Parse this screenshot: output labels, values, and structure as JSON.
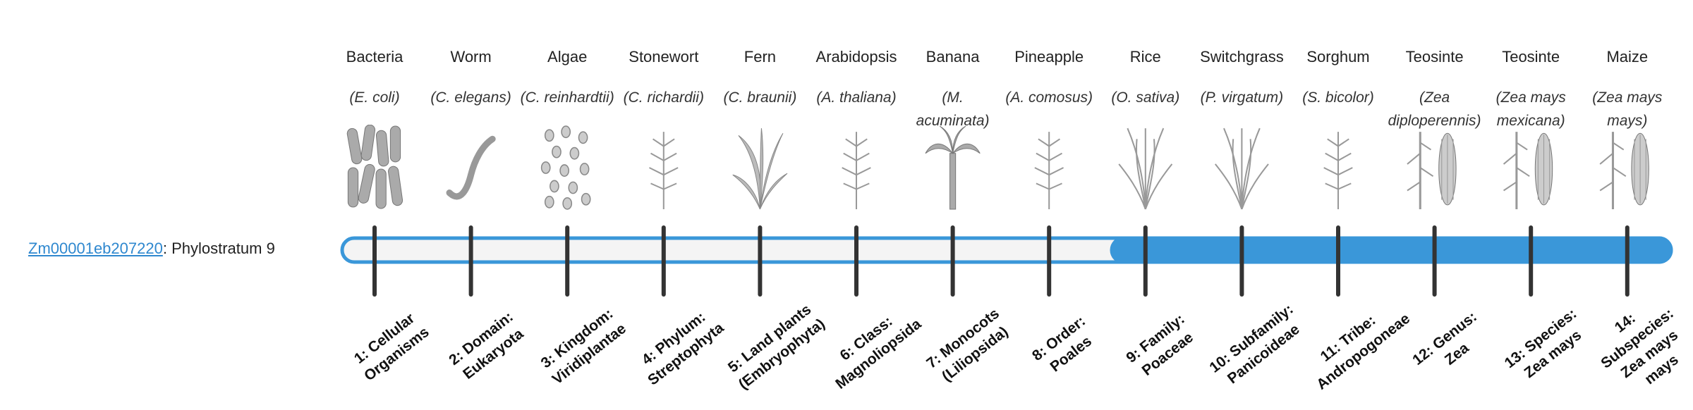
{
  "gene": "Zm00001eb207220",
  "separator": ":",
  "label": "Phylostratum",
  "phylostratum": 9,
  "columns": [
    {
      "organism": "Bacteria",
      "species": "(E. coli)",
      "stratum": "1: Cellular Organisms"
    },
    {
      "organism": "Worm",
      "species": "(C. elegans)",
      "stratum": "2: Domain: Eukaryota"
    },
    {
      "organism": "Algae",
      "species": "(C. reinhardtii)",
      "stratum": "3: Kingdom: Viridiplantae"
    },
    {
      "organism": "Stonewort",
      "species": "(C. richardii)",
      "stratum": "4: Phylum: Streptophyta"
    },
    {
      "organism": "Fern",
      "species": "(C. braunii)",
      "stratum": "5: Land plants (Embryophyta)"
    },
    {
      "organism": "Arabidopsis",
      "species": "(A. thaliana)",
      "stratum": "6: Class: Magnoliopsida"
    },
    {
      "organism": "Banana",
      "species": "(M. acuminata)",
      "stratum": "7: Monocots (Liliopsida)"
    },
    {
      "organism": "Pineapple",
      "species": "(A. comosus)",
      "stratum": "8: Order: Poales"
    },
    {
      "organism": "Rice",
      "species": "(O. sativa)",
      "stratum": "9: Family: Poaceae"
    },
    {
      "organism": "Switchgrass",
      "species": "(P. virgatum)",
      "stratum": "10: Subfamily: Panicoideae"
    },
    {
      "organism": "Sorghum",
      "species": "(S. bicolor)",
      "stratum": "11: Tribe: Andropogoneae"
    },
    {
      "organism": "Teosinte",
      "species": "(Zea diploperennis)",
      "stratum": "12: Genus: Zea"
    },
    {
      "organism": "Teosinte",
      "species": "(Zea mays mexicana)",
      "stratum": "13: Species: Zea mays"
    },
    {
      "organism": "Maize",
      "species": "(Zea mays mays)",
      "stratum": "14: Subspecies: Zea mays mays"
    }
  ]
}
